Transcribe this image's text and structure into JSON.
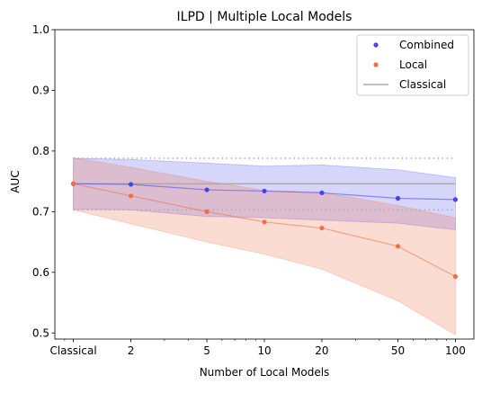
{
  "chart_data": {
    "type": "line",
    "title": "ILPD | Multiple Local Models",
    "xlabel": "Number of Local Models",
    "ylabel": "AUC",
    "x_scale": "log",
    "x": [
      1,
      2,
      5,
      10,
      20,
      50,
      100
    ],
    "x_tick_labels": [
      "Classical",
      "2",
      "5",
      "10",
      "20",
      "50",
      "100"
    ],
    "ylim": [
      0.49,
      1.0
    ],
    "y_ticks": [
      0.5,
      0.6,
      0.7,
      0.8,
      0.9,
      1.0
    ],
    "y_tick_labels": [
      "0.5",
      "0.6",
      "0.7",
      "0.8",
      "0.9",
      "1.0"
    ],
    "grid": false,
    "legend_position": "top-right",
    "series": [
      {
        "name": "Combined",
        "color": "#4444ee",
        "marker": "point",
        "values": [
          0.746,
          0.745,
          0.736,
          0.734,
          0.731,
          0.722,
          0.72
        ],
        "upper": [
          0.788,
          0.786,
          0.78,
          0.775,
          0.777,
          0.769,
          0.756
        ],
        "lower": [
          0.704,
          0.703,
          0.692,
          0.69,
          0.686,
          0.681,
          0.67
        ]
      },
      {
        "name": "Local",
        "color": "#ee6e45",
        "marker": "point",
        "values": [
          0.746,
          0.726,
          0.7,
          0.683,
          0.673,
          0.643,
          0.593
        ],
        "upper": [
          0.789,
          0.773,
          0.75,
          0.735,
          0.732,
          0.71,
          0.69
        ],
        "lower": [
          0.703,
          0.68,
          0.65,
          0.63,
          0.605,
          0.553,
          0.497
        ]
      },
      {
        "name": "Classical",
        "color": "#aaaaaa",
        "marker": "line",
        "value": 0.746,
        "upper": 0.788,
        "lower": 0.703
      }
    ]
  }
}
